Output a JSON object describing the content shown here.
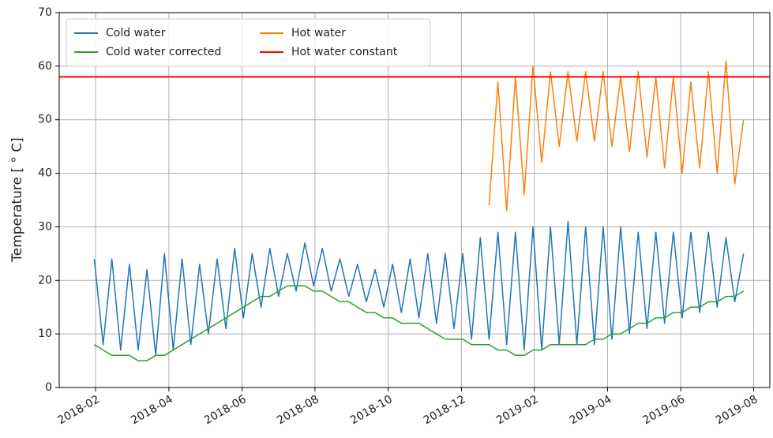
{
  "chart_data": {
    "type": "line",
    "ylabel": "Temperature [ ° C]",
    "x": [
      2018.08,
      2018.1,
      2018.12,
      2018.14,
      2018.16,
      2018.18,
      2018.2,
      2018.22,
      2018.24,
      2018.26,
      2018.28,
      2018.3,
      2018.32,
      2018.34,
      2018.36,
      2018.38,
      2018.4,
      2018.42,
      2018.44,
      2018.46,
      2018.48,
      2018.5,
      2018.52,
      2018.54,
      2018.56,
      2018.58,
      2018.6,
      2018.62,
      2018.64,
      2018.66,
      2018.68,
      2018.7,
      2018.72,
      2018.74,
      2018.76,
      2018.78,
      2018.8,
      2018.82,
      2018.84,
      2018.86,
      2018.88,
      2018.9,
      2018.92,
      2018.94,
      2018.96,
      2018.98,
      2019.0,
      2019.02,
      2019.04,
      2019.06,
      2019.08,
      2019.1,
      2019.12,
      2019.14,
      2019.16,
      2019.18,
      2019.2,
      2019.22,
      2019.24,
      2019.26,
      2019.28,
      2019.3,
      2019.32,
      2019.34,
      2019.36,
      2019.38,
      2019.4,
      2019.42,
      2019.44,
      2019.46,
      2019.48,
      2019.5,
      2019.52,
      2019.54,
      2019.56
    ],
    "series": [
      {
        "name": "Cold water",
        "color": "#1f77b4",
        "values": [
          24,
          8,
          24,
          7,
          23,
          7,
          22,
          6,
          25,
          7,
          24,
          8,
          23,
          10,
          24,
          11,
          26,
          13,
          25,
          15,
          26,
          17,
          25,
          18,
          27,
          19,
          26,
          18,
          24,
          17,
          23,
          16,
          22,
          15,
          23,
          14,
          24,
          13,
          25,
          12,
          25,
          11,
          25,
          9,
          28,
          9,
          29,
          8,
          29,
          7,
          30,
          7,
          30,
          8,
          31,
          8,
          30,
          8,
          30,
          9,
          30,
          10,
          29,
          11,
          29,
          12,
          29,
          13,
          29,
          14,
          29,
          15,
          28,
          16,
          25
        ]
      },
      {
        "name": "Cold water corrected",
        "color": "#2ca02c",
        "values": [
          8,
          7,
          6,
          6,
          6,
          5,
          5,
          6,
          6,
          7,
          8,
          9,
          10,
          11,
          12,
          13,
          14,
          15,
          16,
          17,
          17,
          18,
          19,
          19,
          19,
          18,
          18,
          17,
          16,
          16,
          15,
          14,
          14,
          13,
          13,
          12,
          12,
          12,
          11,
          10,
          9,
          9,
          9,
          8,
          8,
          8,
          7,
          7,
          6,
          6,
          7,
          7,
          8,
          8,
          8,
          8,
          8,
          9,
          9,
          10,
          10,
          11,
          12,
          12,
          13,
          13,
          14,
          14,
          15,
          15,
          16,
          16,
          17,
          17,
          18
        ]
      },
      {
        "name": "Hot water",
        "color": "#ff7f0e",
        "values": [
          null,
          null,
          null,
          null,
          null,
          null,
          null,
          null,
          null,
          null,
          null,
          null,
          null,
          null,
          null,
          null,
          null,
          null,
          null,
          null,
          null,
          null,
          null,
          null,
          null,
          null,
          null,
          null,
          null,
          null,
          null,
          null,
          null,
          null,
          null,
          null,
          null,
          null,
          null,
          null,
          null,
          null,
          null,
          null,
          null,
          34,
          57,
          33,
          58,
          36,
          60,
          42,
          59,
          45,
          59,
          46,
          59,
          46,
          59,
          45,
          58,
          44,
          59,
          43,
          58,
          41,
          58,
          40,
          57,
          41,
          59,
          40,
          61,
          38,
          50
        ]
      }
    ],
    "hlines": [
      {
        "name": "Hot water constant",
        "color": "#ff0000",
        "value": 58
      }
    ],
    "xlim": [
      2018.0,
      2019.62
    ],
    "xticks": [
      {
        "value": 2018.083,
        "label": "2018-02"
      },
      {
        "value": 2018.25,
        "label": "2018-04"
      },
      {
        "value": 2018.417,
        "label": "2018-06"
      },
      {
        "value": 2018.583,
        "label": "2018-08"
      },
      {
        "value": 2018.75,
        "label": "2018-10"
      },
      {
        "value": 2018.917,
        "label": "2018-12"
      },
      {
        "value": 2019.083,
        "label": "2019-02"
      },
      {
        "value": 2019.25,
        "label": "2019-04"
      },
      {
        "value": 2019.417,
        "label": "2019-06"
      },
      {
        "value": 2019.583,
        "label": "2019-08"
      }
    ],
    "ylim": [
      0,
      70
    ],
    "yticks": [
      0,
      10,
      20,
      30,
      40,
      50,
      60,
      70
    ],
    "grid": true,
    "legend": "upper left"
  }
}
